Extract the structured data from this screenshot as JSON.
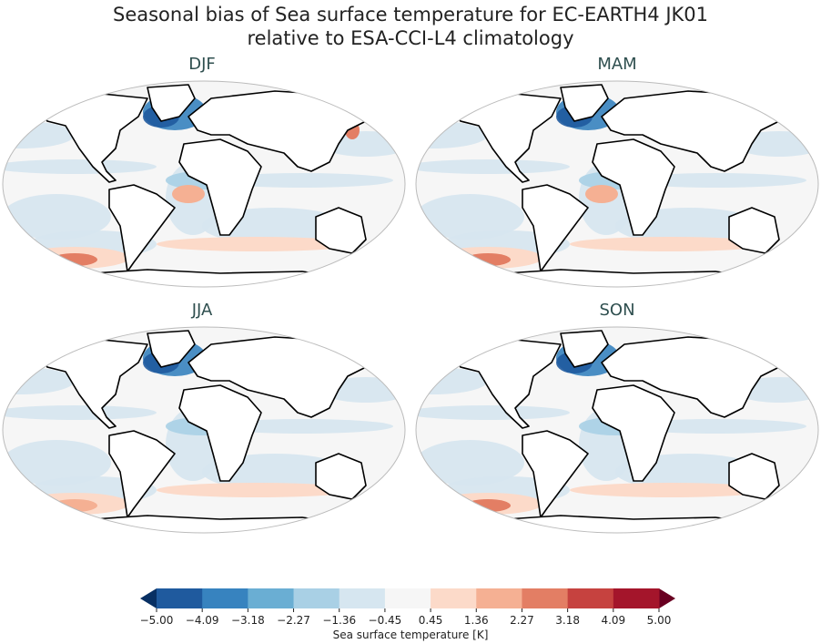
{
  "title": {
    "line1": "Seasonal bias of Sea surface temperature for EC-EARTH4 JK01",
    "line2": "relative to ESA-CCI-L4 climatology"
  },
  "panels": [
    {
      "label": "DJF"
    },
    {
      "label": "MAM"
    },
    {
      "label": "JJA"
    },
    {
      "label": "SON"
    }
  ],
  "colorbar": {
    "label": "Sea surface temperature [K]",
    "ticks": [
      "−5.00",
      "−4.09",
      "−3.18",
      "−2.27",
      "−1.36",
      "−0.45",
      "0.45",
      "1.36",
      "2.27",
      "3.18",
      "4.09",
      "5.00"
    ],
    "colors": [
      "#1f5a9e",
      "#3783bf",
      "#6aaed3",
      "#a9d0e5",
      "#d6e6f0",
      "#f6f6f6",
      "#fcdac9",
      "#f5b093",
      "#e37e64",
      "#c6423f",
      "#a4152b"
    ],
    "under_color": "#083063",
    "over_color": "#690021"
  }
}
